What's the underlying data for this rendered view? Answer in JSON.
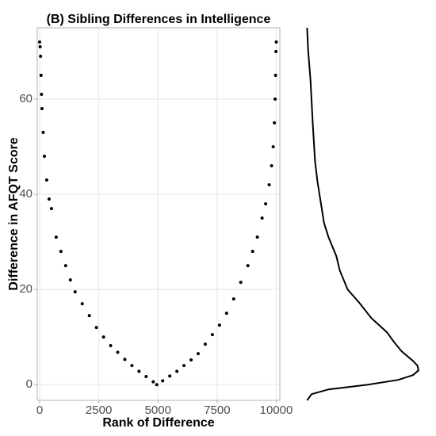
{
  "chart_data": [
    {
      "type": "scatter",
      "title": "(B) Sibling Differences in Intelligence",
      "x_label": "Rank of Difference",
      "y_label": "Difference in AFQT Score",
      "x": [
        0,
        20,
        40,
        60,
        80,
        100,
        150,
        200,
        300,
        400,
        500,
        700,
        900,
        1100,
        1300,
        1500,
        1800,
        2100,
        2400,
        2700,
        3000,
        3300,
        3600,
        3900,
        4200,
        4500,
        4800,
        4950,
        5200,
        5500,
        5800,
        6100,
        6400,
        6700,
        7000,
        7300,
        7600,
        7900,
        8200,
        8500,
        8800,
        9000,
        9200,
        9400,
        9550,
        9700,
        9800,
        9870,
        9920,
        9950,
        9970,
        9985,
        10000
      ],
      "values": [
        72,
        71,
        69,
        65,
        61,
        58,
        53,
        48,
        43,
        39,
        37,
        31,
        28,
        25,
        22,
        19.5,
        17,
        14.5,
        12,
        10,
        8.2,
        6.8,
        5.3,
        4,
        2.8,
        1.7,
        0.6,
        0,
        0.8,
        1.8,
        2.8,
        4,
        5.2,
        6.5,
        8.5,
        10.5,
        12.5,
        15,
        18,
        21.5,
        25,
        28,
        31,
        35,
        38,
        42,
        46,
        50,
        55,
        60,
        65,
        70,
        72
      ],
      "color": "#000000",
      "xlim": [
        -100,
        10150
      ],
      "ylim": [
        -3.3,
        75
      ],
      "xticks": [
        0,
        2500,
        5000,
        7500,
        10000
      ],
      "yticks": [
        0,
        20,
        40,
        60
      ],
      "grid": true
    },
    {
      "type": "density",
      "y": [
        -3.3,
        -2,
        -1,
        0,
        1,
        2,
        3,
        4,
        5,
        7,
        9,
        11,
        14,
        17,
        20,
        24,
        27,
        31,
        34,
        37,
        40,
        43,
        47,
        55,
        64,
        70,
        75
      ],
      "values": [
        0.01,
        0.05,
        0.2,
        0.55,
        0.82,
        0.95,
        1.0,
        0.99,
        0.95,
        0.85,
        0.78,
        0.72,
        0.58,
        0.48,
        0.37,
        0.3,
        0.27,
        0.2,
        0.16,
        0.14,
        0.12,
        0.1,
        0.08,
        0.06,
        0.04,
        0.02,
        0.01
      ],
      "color": "#000000",
      "ylim": [
        -3.3,
        75
      ],
      "xlim": [
        0,
        1
      ]
    }
  ]
}
